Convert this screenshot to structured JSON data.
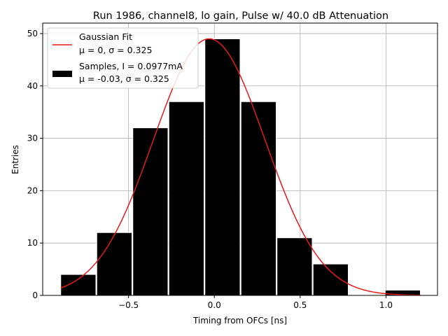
{
  "chart_data": {
    "type": "bar",
    "title": "Run 1986, channel8, lo gain, Pulse w/ 40.0 dB Attenuation",
    "xlabel": "Timing from OFCs [ns]",
    "ylabel": "Entries",
    "xlim": [
      -1.0,
      1.3
    ],
    "ylim": [
      0,
      52
    ],
    "grid": true,
    "legend_position": "top-left",
    "bins": [
      {
        "left": -0.895,
        "right": -0.69,
        "count": 4
      },
      {
        "left": -0.685,
        "right": -0.48,
        "count": 12
      },
      {
        "left": -0.475,
        "right": -0.27,
        "count": 32
      },
      {
        "left": -0.265,
        "right": -0.06,
        "count": 37
      },
      {
        "left": -0.055,
        "right": 0.15,
        "count": 49
      },
      {
        "left": 0.155,
        "right": 0.36,
        "count": 37
      },
      {
        "left": 0.365,
        "right": 0.57,
        "count": 11
      },
      {
        "left": 0.575,
        "right": 0.78,
        "count": 6
      },
      {
        "left": 0.785,
        "right": 0.99,
        "count": 0
      },
      {
        "left": 0.995,
        "right": 1.2,
        "count": 1
      }
    ],
    "fit": {
      "mu": -0.03,
      "sigma": 0.325,
      "amplitude": 49,
      "x_range": [
        -0.895,
        1.2
      ],
      "color": "#e41a1c"
    },
    "x_ticks": [
      {
        "value": -0.5,
        "label": "−0.5"
      },
      {
        "value": 0.0,
        "label": "0.0"
      },
      {
        "value": 0.5,
        "label": "0.5"
      },
      {
        "value": 1.0,
        "label": "1.0"
      }
    ],
    "y_ticks": [
      {
        "value": 0,
        "label": "0"
      },
      {
        "value": 10,
        "label": "10"
      },
      {
        "value": 20,
        "label": "20"
      },
      {
        "value": 30,
        "label": "30"
      },
      {
        "value": 40,
        "label": "40"
      },
      {
        "value": 50,
        "label": "50"
      }
    ],
    "legend": {
      "fit_line1": "Gaussian Fit",
      "fit_line2": "μ = 0, σ = 0.325",
      "samples_line1": "Samples, I = 0.0977mA",
      "samples_line2": "μ = -0.03, σ = 0.325"
    },
    "colors": {
      "bar_fill": "#000000",
      "bar_edge": "#ffffff",
      "grid": "#b0b0b0",
      "fit_line": "#e41a1c"
    }
  }
}
